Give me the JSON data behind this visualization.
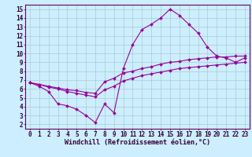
{
  "background_color": "#cceeff",
  "grid_color": "#aacccc",
  "line_color": "#990099",
  "xlim": [
    -0.5,
    23.5
  ],
  "ylim": [
    1.5,
    15.5
  ],
  "xlabel": "Windchill (Refroidissement éolien,°C)",
  "xlabel_fontsize": 6.0,
  "xticks": [
    0,
    1,
    2,
    3,
    4,
    5,
    6,
    7,
    8,
    9,
    10,
    11,
    12,
    13,
    14,
    15,
    16,
    17,
    18,
    19,
    20,
    21,
    22,
    23
  ],
  "yticks": [
    2,
    3,
    4,
    5,
    6,
    7,
    8,
    9,
    10,
    11,
    12,
    13,
    14,
    15
  ],
  "tick_fontsize": 5.5,
  "line1_x": [
    0,
    1,
    2,
    3,
    4,
    5,
    6,
    7,
    8,
    9,
    10,
    11,
    12,
    13,
    14,
    15,
    16,
    17,
    18,
    19,
    20,
    21,
    22,
    23
  ],
  "line1_y": [
    6.7,
    6.3,
    5.7,
    4.3,
    4.1,
    3.7,
    3.0,
    2.2,
    4.3,
    3.3,
    8.3,
    11.0,
    12.7,
    13.3,
    14.0,
    15.0,
    14.3,
    13.3,
    12.3,
    10.7,
    9.7,
    9.5,
    9.0,
    9.5
  ],
  "line2_x": [
    0,
    1,
    2,
    3,
    4,
    5,
    6,
    7,
    8,
    9,
    10,
    11,
    12,
    13,
    14,
    15,
    16,
    17,
    18,
    19,
    20,
    21,
    22,
    23
  ],
  "line2_y": [
    6.7,
    6.5,
    6.3,
    6.1,
    5.9,
    5.8,
    5.6,
    5.5,
    6.8,
    7.2,
    7.8,
    8.0,
    8.3,
    8.5,
    8.8,
    9.0,
    9.1,
    9.3,
    9.4,
    9.5,
    9.6,
    9.6,
    9.7,
    9.7
  ],
  "line3_x": [
    0,
    1,
    2,
    3,
    4,
    5,
    6,
    7,
    8,
    9,
    10,
    11,
    12,
    13,
    14,
    15,
    16,
    17,
    18,
    19,
    20,
    21,
    22,
    23
  ],
  "line3_y": [
    6.7,
    6.5,
    6.2,
    6.0,
    5.7,
    5.5,
    5.3,
    5.1,
    5.9,
    6.3,
    6.9,
    7.2,
    7.5,
    7.7,
    7.9,
    8.1,
    8.3,
    8.4,
    8.5,
    8.6,
    8.7,
    8.8,
    8.9,
    9.0
  ],
  "figsize": [
    3.2,
    2.0
  ],
  "dpi": 100
}
